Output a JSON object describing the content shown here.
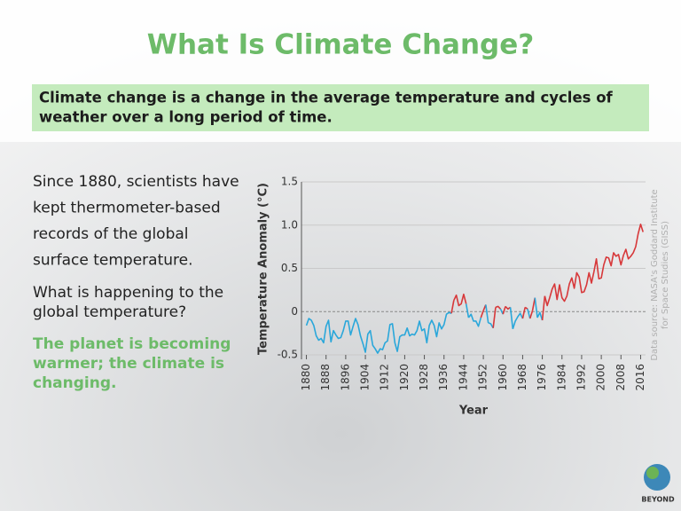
{
  "slide": {
    "title": "What Is Climate Change?",
    "banner": [
      "Climate change is a change in the average temperature and cycles of",
      "weather over a long period of time."
    ],
    "paragraph1": [
      "Since 1880, scientists have",
      "kept thermometer-based",
      "records of the global",
      "surface temperature."
    ],
    "paragraph2": [
      "What is happening to the",
      "global temperature?"
    ],
    "answer": [
      "The planet is becoming",
      "warmer; the climate is",
      "changing."
    ],
    "logo": "BEYOND"
  },
  "chart_data": {
    "type": "line",
    "x_label": "Year",
    "y_label": "Temperature Anomaly (°C)",
    "source": [
      "Data source: NASA's Goddard Institute",
      "for Space Studies (GISS)"
    ],
    "x_start": 1880,
    "values": [
      -0.16,
      -0.08,
      -0.1,
      -0.16,
      -0.28,
      -0.33,
      -0.31,
      -0.36,
      -0.17,
      -0.1,
      -0.35,
      -0.22,
      -0.27,
      -0.31,
      -0.3,
      -0.22,
      -0.11,
      -0.11,
      -0.27,
      -0.17,
      -0.08,
      -0.15,
      -0.28,
      -0.37,
      -0.47,
      -0.26,
      -0.22,
      -0.39,
      -0.43,
      -0.48,
      -0.43,
      -0.44,
      -0.36,
      -0.34,
      -0.15,
      -0.14,
      -0.36,
      -0.46,
      -0.29,
      -0.27,
      -0.27,
      -0.19,
      -0.28,
      -0.26,
      -0.27,
      -0.22,
      -0.11,
      -0.22,
      -0.2,
      -0.36,
      -0.16,
      -0.1,
      -0.16,
      -0.29,
      -0.13,
      -0.2,
      -0.15,
      -0.03,
      -0.01,
      -0.02,
      0.13,
      0.19,
      0.07,
      0.09,
      0.2,
      0.09,
      -0.07,
      -0.03,
      -0.11,
      -0.11,
      -0.17,
      -0.07,
      0.01,
      0.08,
      -0.13,
      -0.14,
      -0.19,
      0.05,
      0.06,
      0.03,
      -0.03,
      0.06,
      0.03,
      0.05,
      -0.2,
      -0.11,
      -0.06,
      -0.02,
      -0.08,
      0.05,
      0.03,
      -0.08,
      0.01,
      0.16,
      -0.07,
      -0.01,
      -0.1,
      0.18,
      0.07,
      0.16,
      0.26,
      0.32,
      0.14,
      0.31,
      0.16,
      0.12,
      0.18,
      0.32,
      0.39,
      0.27,
      0.45,
      0.4,
      0.22,
      0.23,
      0.31,
      0.45,
      0.33,
      0.46,
      0.61,
      0.38,
      0.39,
      0.54,
      0.63,
      0.62,
      0.53,
      0.68,
      0.64,
      0.66,
      0.54,
      0.65,
      0.72,
      0.61,
      0.64,
      0.68,
      0.75,
      0.9,
      1.01,
      0.92
    ],
    "below_color": "#2aa7da",
    "above_color": "#d7383a",
    "xlim": [
      1878,
      2018
    ],
    "xticks": [
      1880,
      1888,
      1896,
      1904,
      1912,
      1920,
      1928,
      1936,
      1944,
      1952,
      1960,
      1968,
      1976,
      1984,
      1992,
      2000,
      2008,
      2016
    ],
    "ylim": [
      -0.5,
      1.5
    ],
    "yticks": [
      -0.5,
      0,
      0.5,
      {
        "value": 1,
        "label": "1.0"
      },
      1.5
    ],
    "grid": true
  }
}
